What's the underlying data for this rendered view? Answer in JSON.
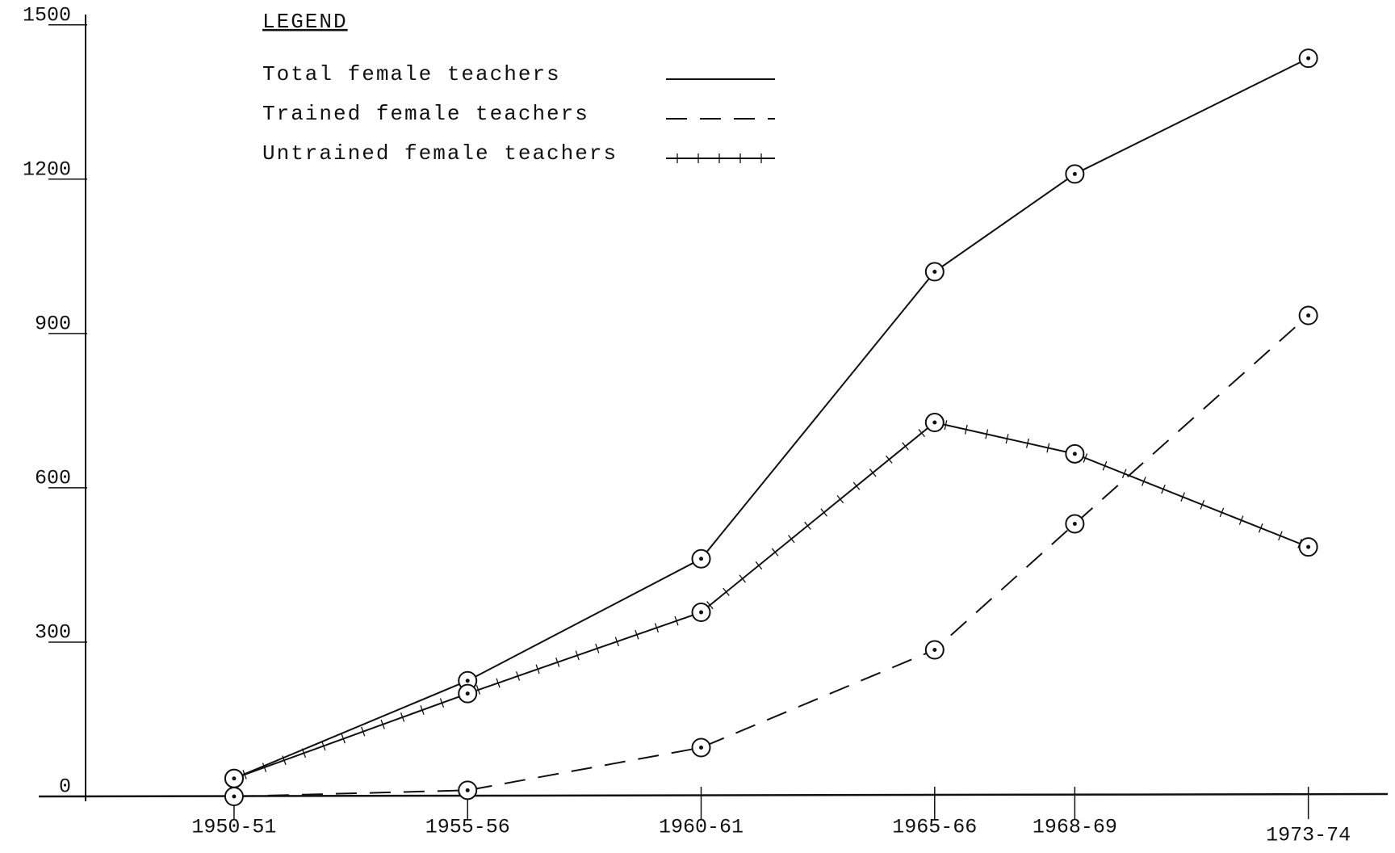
{
  "chart_data": {
    "type": "line",
    "legend_title": "LEGEND",
    "x": [
      1950,
      1955,
      1960,
      1965,
      1968,
      1973
    ],
    "xlim": [
      1946.7,
      1974.7
    ],
    "xticks": [
      {
        "value": 1950,
        "label": "1950-51"
      },
      {
        "value": 1955,
        "label": "1955-56"
      },
      {
        "value": 1960,
        "label": "1960-61"
      },
      {
        "value": 1965,
        "label": "1965-66"
      },
      {
        "value": 1968,
        "label": "1968-69"
      },
      {
        "value": 1973,
        "label": "1973-74"
      }
    ],
    "ylim": [
      0,
      1520
    ],
    "yticks": [
      0,
      300,
      600,
      900,
      1200,
      1500
    ],
    "grid": false,
    "legend": "upper left",
    "series": [
      {
        "name": "Total female teachers",
        "color": "#111111",
        "style": "solid",
        "values": [
          35,
          225,
          462,
          1020,
          1210,
          1435
        ]
      },
      {
        "name": "Trained female teachers",
        "color": "#111111",
        "style": "dashed",
        "values": [
          0,
          12,
          95,
          285,
          530,
          935
        ]
      },
      {
        "name": "Untrained female teachers",
        "color": "#111111",
        "style": "ticked",
        "values": [
          35,
          200,
          358,
          727,
          666,
          485
        ]
      }
    ]
  }
}
